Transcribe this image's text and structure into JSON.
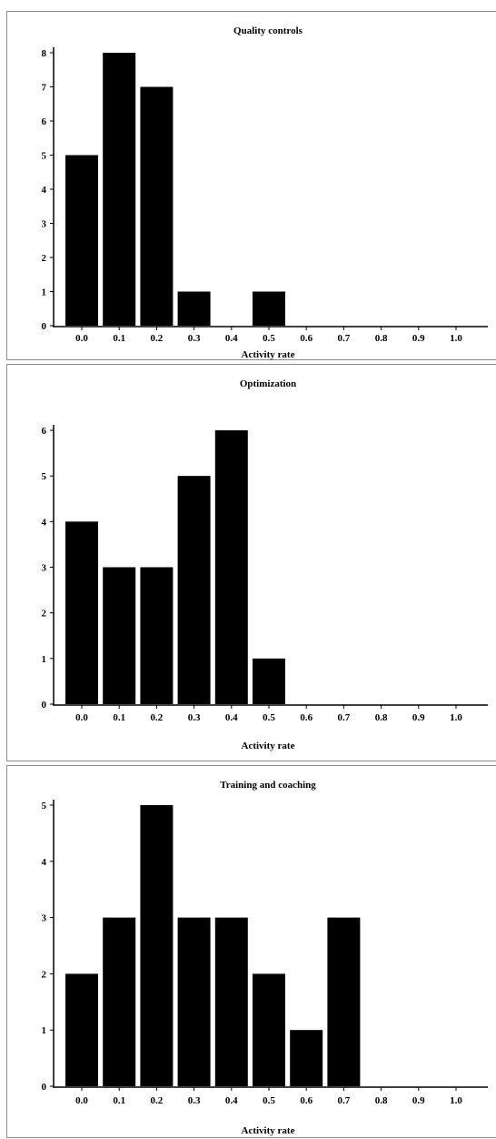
{
  "chart_data": [
    {
      "type": "bar",
      "title": "Quality controls",
      "xlabel": "Activity rate",
      "ylabel": "",
      "categories": [
        "0.0",
        "0.1",
        "0.2",
        "0.3",
        "0.4",
        "0.5",
        "0.6",
        "0.7",
        "0.8",
        "0.9",
        "1.0"
      ],
      "values": [
        5,
        8,
        7,
        1,
        0,
        1,
        0,
        0,
        0,
        0,
        0
      ],
      "yticks": [
        0,
        1,
        2,
        3,
        4,
        5,
        6,
        7,
        8
      ],
      "ylim": [
        0,
        8
      ],
      "bar_color": "#000000",
      "grid": false,
      "legend": "none"
    },
    {
      "type": "bar",
      "title": "Optimization",
      "xlabel": "Activity rate",
      "ylabel": "",
      "categories": [
        "0.0",
        "0.1",
        "0.2",
        "0.3",
        "0.4",
        "0.5",
        "0.6",
        "0.7",
        "0.8",
        "0.9",
        "1.0"
      ],
      "values": [
        4,
        3,
        3,
        5,
        6,
        1,
        0,
        0,
        0,
        0,
        0
      ],
      "yticks": [
        0,
        1,
        2,
        3,
        4,
        5,
        6
      ],
      "ylim": [
        0,
        6
      ],
      "bar_color": "#000000",
      "grid": false,
      "legend": "none"
    },
    {
      "type": "bar",
      "title": "Training and coaching",
      "xlabel": "Activity rate",
      "ylabel": "",
      "categories": [
        "0.0",
        "0.1",
        "0.2",
        "0.3",
        "0.4",
        "0.5",
        "0.6",
        "0.7",
        "0.8",
        "0.9",
        "1.0"
      ],
      "values": [
        2,
        3,
        5,
        3,
        3,
        2,
        1,
        3,
        0,
        0,
        0
      ],
      "yticks": [
        0,
        1,
        2,
        3,
        4,
        5
      ],
      "ylim": [
        0,
        5
      ],
      "bar_color": "#000000",
      "grid": false,
      "legend": "none"
    }
  ]
}
